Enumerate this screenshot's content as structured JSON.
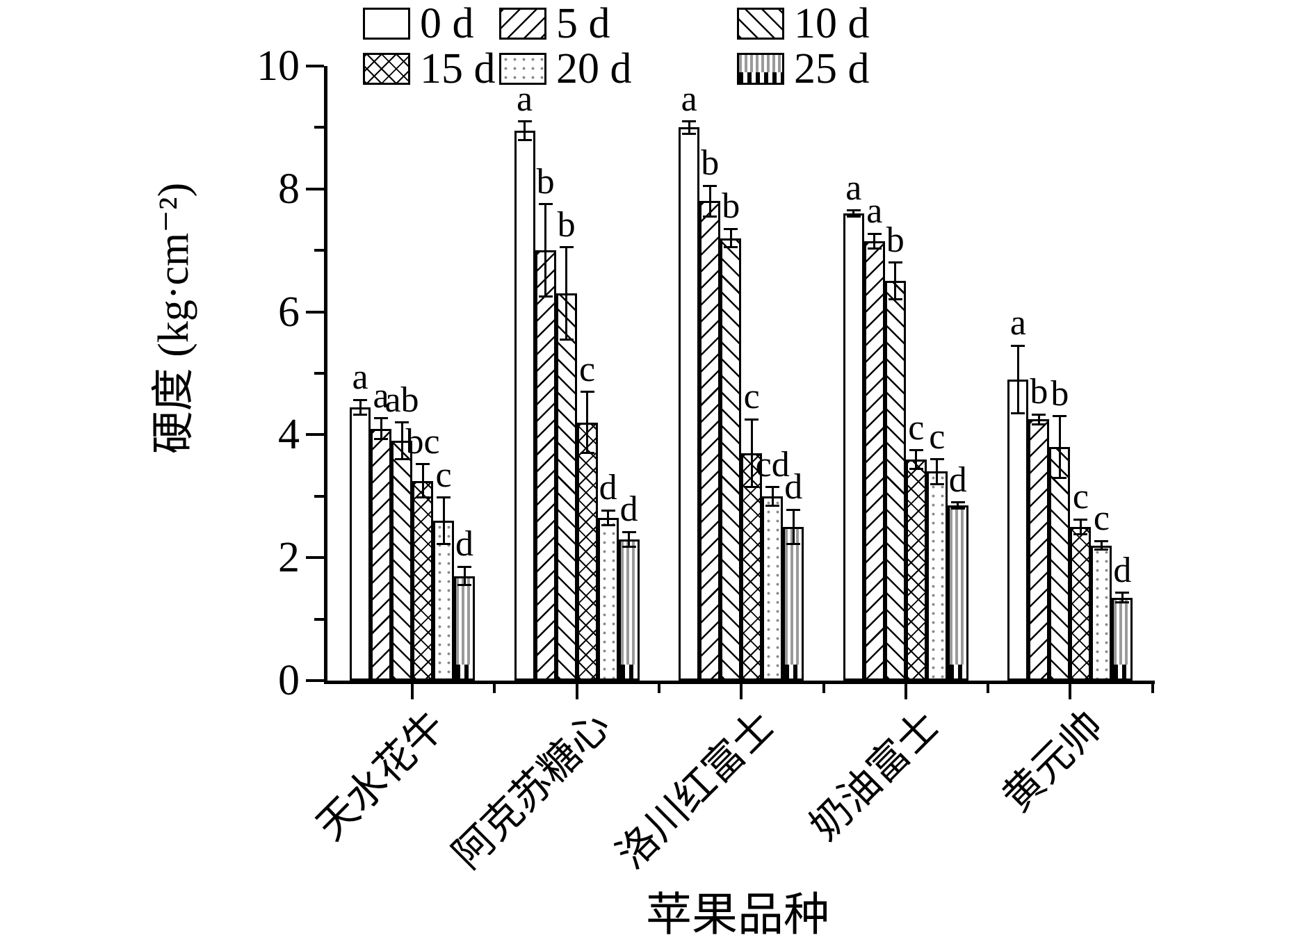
{
  "figure": {
    "y_axis_title": "硬度 (kg·cm⁻²)",
    "x_axis_title": "苹果品种"
  },
  "legend": {
    "items": [
      {
        "label": "0 d",
        "pattern": "plain"
      },
      {
        "label": "5 d",
        "pattern": "diag-fwd"
      },
      {
        "label": "10 d",
        "pattern": "diag-back"
      },
      {
        "label": "15 d",
        "pattern": "crosshatch"
      },
      {
        "label": "20 d",
        "pattern": "dots"
      },
      {
        "label": "25 d",
        "pattern": "vstripes"
      }
    ]
  },
  "chart_data": {
    "type": "bar",
    "title": "",
    "xlabel": "苹果品种",
    "ylabel": "硬度 (kg·cm⁻²)",
    "ylim": [
      0,
      10
    ],
    "yticks": [
      0,
      2,
      4,
      6,
      8,
      10
    ],
    "yminorticks": [
      1,
      3,
      5,
      7,
      9
    ],
    "grid": false,
    "legend_position": "top-center",
    "categories": [
      "天水花牛",
      "阿克苏糖心",
      "洛川红富士",
      "奶油富士",
      "黄元帅"
    ],
    "series": [
      {
        "name": "0 d",
        "pattern": "plain",
        "values": [
          4.45,
          8.95,
          9.0,
          7.6,
          4.9
        ],
        "errors": [
          0.12,
          0.15,
          0.1,
          0.05,
          0.55
        ],
        "sig_letters": [
          "a",
          "a",
          "a",
          "a",
          "a"
        ]
      },
      {
        "name": "5 d",
        "pattern": "diag-fwd",
        "values": [
          4.1,
          7.0,
          7.8,
          7.15,
          4.25
        ],
        "errors": [
          0.17,
          0.75,
          0.25,
          0.12,
          0.08
        ],
        "sig_letters": [
          "a",
          "b",
          "b",
          "a",
          "b"
        ]
      },
      {
        "name": "10 d",
        "pattern": "diag-back",
        "values": [
          3.9,
          6.3,
          7.2,
          6.5,
          3.8
        ],
        "errors": [
          0.3,
          0.75,
          0.15,
          0.3,
          0.5
        ],
        "sig_letters": [
          "ab",
          "b",
          "b",
          "b",
          "b"
        ]
      },
      {
        "name": "15 d",
        "pattern": "crosshatch",
        "values": [
          3.25,
          4.2,
          3.7,
          3.6,
          2.5
        ],
        "errors": [
          0.27,
          0.5,
          0.55,
          0.15,
          0.12
        ],
        "sig_letters": [
          "bc",
          "c",
          "c",
          "c",
          "c"
        ]
      },
      {
        "name": "20 d",
        "pattern": "dots",
        "values": [
          2.6,
          2.65,
          3.0,
          3.4,
          2.2
        ],
        "errors": [
          0.38,
          0.12,
          0.15,
          0.2,
          0.07
        ],
        "sig_letters": [
          "c",
          "d",
          "cd",
          "c",
          "c"
        ]
      },
      {
        "name": "25 d",
        "pattern": "vstripes",
        "values": [
          1.7,
          2.3,
          2.5,
          2.85,
          1.35
        ],
        "errors": [
          0.15,
          0.12,
          0.28,
          0.05,
          0.08
        ],
        "sig_letters": [
          "d",
          "d",
          "d",
          "d",
          "d"
        ]
      }
    ]
  }
}
